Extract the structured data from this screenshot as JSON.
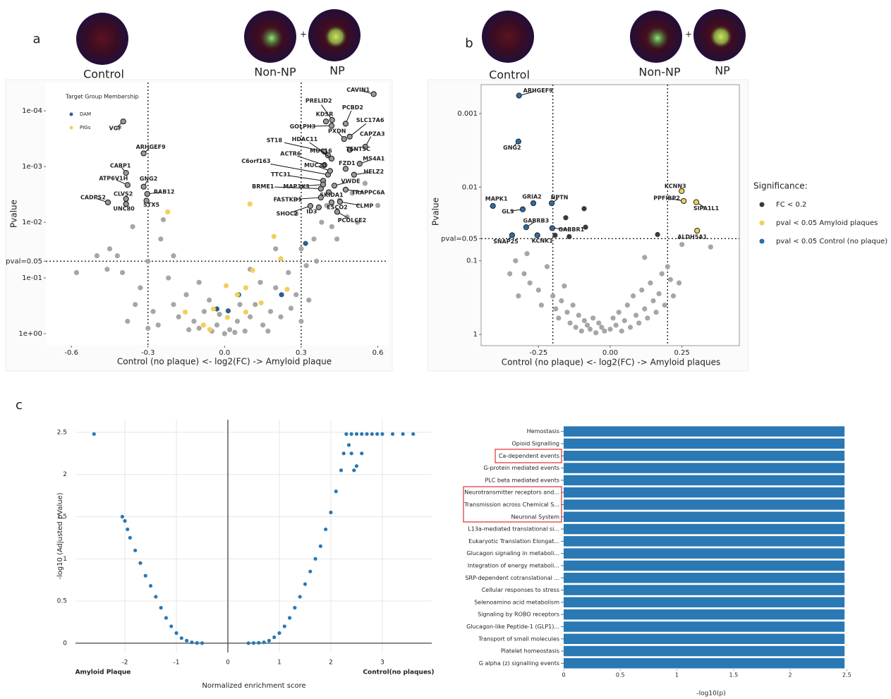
{
  "chart_data": [
    {
      "type": "scatter",
      "panel": "a",
      "image_labels": [
        "Control",
        "Non-NP",
        "NP"
      ],
      "plus": "+",
      "xlabel": "Control (no plaque) <- log2(FC) -> Amyloid plaque",
      "ylabel": "Pvalue",
      "ylog": true,
      "xlim": [
        -0.7,
        0.64
      ],
      "ylim": [
        1.64,
        3.1e-05
      ],
      "xticks": [
        -0.6,
        -0.3,
        {
          "value": 0,
          "label": "0.0"
        },
        0.3,
        0.6
      ],
      "yticks": [
        {
          "value": 0.0001,
          "label": "1e-04"
        },
        {
          "value": 0.001,
          "label": "1e-03"
        },
        {
          "value": 0.01,
          "label": "1e-02"
        },
        {
          "value": 0.05,
          "label": "pval=0.05"
        },
        {
          "value": 0.1,
          "label": "1e-01"
        },
        {
          "value": 1,
          "label": "1e+00"
        }
      ],
      "vlines": [
        -0.3,
        0.3
      ],
      "hlines": [
        0.05
      ],
      "legend_title": "Target Group Membership",
      "series": [
        {
          "color": "#a6a6a6",
          "x": [
            -0.35,
            -0.3,
            -0.25,
            -0.22,
            -0.2,
            -0.18,
            -0.15,
            -0.12,
            -0.1,
            -0.08,
            -0.05,
            -0.03,
            0,
            0.02,
            0.05,
            0.08,
            0.1,
            0.12,
            0.15,
            0.18,
            0.2,
            0.22,
            0.25,
            0.28,
            0.3,
            0.32,
            0.35,
            0.38,
            0.4,
            0.42,
            0.45,
            0.48,
            0.5,
            0.55,
            -0.4,
            -0.42,
            -0.38,
            -0.45,
            -0.33,
            -0.28,
            -0.26,
            -0.24,
            -0.36,
            -0.06,
            0.06,
            0.14,
            0.26,
            0.33,
            -0.5,
            -0.46,
            -0.02,
            0.04,
            -0.14,
            0.17,
            0.1,
            -0.1,
            0.28,
            0.36,
            0.44,
            0.52,
            -0.2,
            0.2,
            -0.3,
            0.3,
            -0.58,
            0.6
          ],
          "values": [
            0.3,
            0.05,
            0.02,
            0.1,
            0.3,
            0.5,
            0.2,
            0.6,
            0.8,
            0.4,
            0.9,
            0.7,
            1,
            0.85,
            0.6,
            0.9,
            0.5,
            0.3,
            0.7,
            0.4,
            0.15,
            0.5,
            0.08,
            0.2,
            0.03,
            0.06,
            0.02,
            0.01,
            0.005,
            0.012,
            0.004,
            0.008,
            0.003,
            0.002,
            0.08,
            0.04,
            0.6,
            0.03,
            0.15,
            0.4,
            0.7,
            0.009,
            0.012,
            0.25,
            0.3,
            0.12,
            0.35,
            0.25,
            0.04,
            0.07,
            0.45,
            0.95,
            0.85,
            0.9,
            0.07,
            0.12,
            0.007,
            0.05,
            0.02,
            0.01,
            0.04,
            0.03,
            0.8,
            0.6,
            0.08,
            0.005
          ]
        },
        {
          "name": "DAM",
          "color": "#2e5f8a",
          "x": [
            0.317,
            0.055,
            0.014,
            -0.03,
            0.223
          ],
          "values": [
            0.024,
            0.2,
            0.39,
            0.36,
            0.2
          ]
        },
        {
          "name": "PIGs",
          "color": "#f2cf5b",
          "x": [
            -0.223,
            0.099,
            0.193,
            0.22,
            0.11,
            0.006,
            0.083,
            -0.154,
            -0.044,
            -0.083,
            -0.058,
            0.011,
            0.083,
            0.143,
            0.245,
            0.05
          ],
          "values": [
            0.0065,
            0.0047,
            0.018,
            0.045,
            0.073,
            0.138,
            0.15,
            0.41,
            0.36,
            0.7,
            0.84,
            0.51,
            0.41,
            0.28,
            0.16,
            0.2
          ]
        },
        {
          "color": "#9a9a9a",
          "outline": "#111",
          "point_labels": [
            "CAVIN1",
            "VGF",
            "ARHGEF9",
            "CABP1",
            "ATP6V1H",
            "GNG2",
            "RAB12",
            "CLVS2",
            "STX5",
            "CADPS2",
            "UNC80",
            "PRELID2",
            "PCBD2",
            "KDSR",
            "SLC17A6",
            "GOLPH3",
            "PXDN",
            "CAPZA3",
            "ST18",
            "HDAC11",
            "TENT5C",
            "MUC16",
            "ACTR6",
            "MS4A1",
            "C6orf163",
            "MUC20",
            "FZD1",
            "HELZ2",
            "TTC31",
            "VWDE",
            "BRME1",
            "MAP3K3",
            "TRAPPC6A",
            "SKIDA1",
            "FASTKD1",
            "CLMP",
            "ESCO2",
            "SHOC2",
            "ID3",
            "PCOLCE2"
          ],
          "x": [
            0.584,
            -0.397,
            -0.317,
            -0.386,
            -0.38,
            -0.317,
            -0.303,
            -0.386,
            -0.306,
            -0.457,
            -0.386,
            0.421,
            0.474,
            0.397,
            0.49,
            0.419,
            0.468,
            0.551,
            0.391,
            0.405,
            0.49,
            0.419,
            0.391,
            0.529,
            0.405,
            0.413,
            0.474,
            0.507,
            0.386,
            0.43,
            0.377,
            0.386,
            0.474,
            0.408,
            0.377,
            0.452,
            0.419,
            0.336,
            0.369,
            0.441
          ],
          "values": [
            5e-05,
            0.000155,
            0.00058,
            0.0013,
            0.00214,
            0.0023,
            0.0031,
            0.0038,
            0.0041,
            0.0044,
            0.0047,
            0.000146,
            0.00017,
            0.000155,
            0.00029,
            0.000185,
            0.00032,
            0.00044,
            0.00054,
            0.00063,
            0.0005,
            0.00072,
            0.00094,
            0.00089,
            0.0014,
            0.0012,
            0.0011,
            0.0014,
            0.0018,
            0.0022,
            0.0025,
            0.0021,
            0.0026,
            0.0029,
            0.0036,
            0.0043,
            0.0044,
            0.0051,
            0.0054,
            0.0065
          ]
        }
      ]
    },
    {
      "type": "scatter",
      "panel": "b",
      "image_labels": [
        "Control",
        "Non-NP",
        "NP"
      ],
      "plus": "+",
      "xlabel": "Control (no plaque) <- log2(FC) -> Amyloid plaques",
      "ylabel": "Pvalue",
      "ylog": true,
      "xlim": [
        -0.45,
        0.45
      ],
      "ylim": [
        1.42,
        0.000405
      ],
      "xticks": [
        -0.25,
        {
          "value": 0,
          "label": "0.00"
        },
        0.25
      ],
      "yticks": [
        0.001,
        0.01,
        {
          "value": 0.05,
          "label": "pval=0.05"
        },
        0.1,
        1
      ],
      "vlines": [
        -0.2,
        0.2
      ],
      "hlines": [
        0.05
      ],
      "frame": true,
      "legend_title": "Significance:",
      "series": [
        {
          "color": "#a6a6a6",
          "x": [
            -0.3,
            -0.28,
            -0.25,
            -0.22,
            -0.2,
            -0.19,
            -0.18,
            -0.17,
            -0.15,
            -0.14,
            -0.13,
            -0.12,
            -0.11,
            -0.1,
            -0.09,
            -0.08,
            -0.07,
            -0.06,
            -0.05,
            -0.04,
            -0.03,
            -0.02,
            0,
            0.01,
            0.02,
            0.03,
            0.04,
            0.05,
            0.06,
            0.07,
            0.08,
            0.09,
            0.1,
            0.11,
            0.12,
            0.13,
            0.14,
            0.15,
            0.16,
            0.17,
            0.18,
            0.19,
            0.2,
            0.22,
            0.24,
            0.25,
            0.35,
            -0.32,
            -0.33,
            -0.35,
            -0.29,
            -0.24,
            0.12,
            0.21,
            -0.16
          ],
          "values": [
            0.15,
            0.2,
            0.25,
            0.12,
            0.3,
            0.45,
            0.6,
            0.35,
            0.5,
            0.7,
            0.4,
            0.8,
            0.55,
            0.9,
            0.65,
            0.75,
            0.85,
            0.6,
            0.95,
            0.7,
            0.8,
            0.9,
            0.85,
            0.6,
            0.75,
            0.5,
            0.9,
            0.65,
            0.4,
            0.8,
            0.3,
            0.55,
            0.7,
            0.25,
            0.45,
            0.6,
            0.2,
            0.35,
            0.5,
            0.28,
            0.15,
            0.4,
            0.12,
            0.3,
            0.2,
            0.06,
            0.065,
            0.3,
            0.1,
            0.15,
            0.08,
            0.4,
            0.09,
            0.18,
            0.22
          ]
        },
        {
          "name": "FC < 0.2",
          "color": "#3a3a3a",
          "x": [
            -0.091,
            -0.155,
            -0.086,
            -0.192,
            -0.143,
            0.165
          ],
          "values": [
            0.0196,
            0.026,
            0.035,
            0.045,
            0.047,
            0.044
          ]
        },
        {
          "name": "pval < 0.05 Amyloid plaques",
          "color": "#f2cf5b",
          "outline": "#222",
          "point_labels": [
            "KCNN3",
            "PPFIBP2",
            "SIPA1L1",
            "ALDH5A1"
          ],
          "x": [
            0.249,
            0.256,
            0.3,
            0.303
          ],
          "values": [
            0.0113,
            0.0154,
            0.016,
            0.039
          ]
        },
        {
          "name": "pval < 0.05 Control (no plaque)",
          "color": "#2e6da4",
          "outline": "#222",
          "point_labels": [
            "ARHGEF9",
            "GNG2",
            "MAPK1",
            "GLS",
            "GRIA2",
            "NPTN",
            "GABRB3",
            "GABBR1",
            "SNAP25",
            "KCNK1"
          ],
          "x": [
            -0.318,
            -0.32,
            -0.409,
            -0.305,
            -0.268,
            -0.204,
            -0.293,
            -0.202,
            -0.342,
            -0.254
          ],
          "values": [
            0.00057,
            0.0024,
            0.018,
            0.02,
            0.0165,
            0.0165,
            0.035,
            0.036,
            0.045,
            0.045
          ]
        }
      ]
    },
    {
      "type": "scatter",
      "panel": "c",
      "xlabel": "Normalized enrichment score",
      "ylabel": "-log10 (Adjusted pValue)",
      "end_labels": [
        "Amyloid Plaque",
        "Control(no plaques)"
      ],
      "xlim": [
        -2.96,
        3.96
      ],
      "ylim": [
        -0.11,
        2.65
      ],
      "xticks": [
        -2,
        -1,
        0,
        1,
        2,
        3
      ],
      "yticks": [
        0,
        0.5,
        1,
        1.5,
        2,
        2.5
      ],
      "grid": true,
      "zero_lines": true,
      "series": [
        {
          "color": "#2a78b4",
          "x": [
            -2.6,
            -2.05,
            -2.0,
            -1.95,
            -1.9,
            -1.8,
            -1.7,
            -1.6,
            -1.5,
            -1.4,
            -1.3,
            -1.2,
            -1.1,
            -1.0,
            -0.9,
            -0.8,
            -0.7,
            -0.6,
            -0.5,
            0.4,
            0.5,
            0.6,
            0.7,
            0.8,
            0.9,
            1.0,
            1.1,
            1.2,
            1.3,
            1.4,
            1.5,
            1.6,
            1.7,
            1.8,
            1.9,
            2.0,
            2.1,
            2.2,
            2.25,
            2.35,
            2.4,
            2.45,
            2.6,
            2.5,
            2.3,
            2.4,
            2.5,
            2.6,
            2.7,
            2.8,
            2.9,
            3.0,
            3.2,
            3.4,
            3.6
          ],
          "values": [
            2.48,
            1.5,
            1.45,
            1.35,
            1.25,
            1.1,
            0.95,
            0.8,
            0.68,
            0.55,
            0.42,
            0.3,
            0.2,
            0.12,
            0.06,
            0.03,
            0.01,
            0.003,
            0.001,
            0,
            0.002,
            0.005,
            0.01,
            0.03,
            0.07,
            0.12,
            0.2,
            0.3,
            0.42,
            0.55,
            0.7,
            0.85,
            1.0,
            1.15,
            1.35,
            1.55,
            1.8,
            2.05,
            2.25,
            2.35,
            2.25,
            2.05,
            2.25,
            2.1,
            2.48,
            2.48,
            2.48,
            2.48,
            2.48,
            2.48,
            2.48,
            2.48,
            2.48,
            2.48,
            2.48
          ]
        }
      ]
    },
    {
      "type": "barh",
      "xlabel": "-log10(p)",
      "color": "#2a78b4",
      "xlim": [
        0,
        2.56
      ],
      "xticks": [
        0,
        0.5,
        1,
        1.5,
        2,
        2.5
      ],
      "categories": [
        "Hemostasis",
        "Opioid Signalling",
        "Ca-dependent events",
        "G-protein mediated events",
        "PLC beta mediated events",
        "Neurotransmitter receptors and...",
        "Transmission across Chemical S...",
        "Neuronal System",
        "L13a-mediated translational si...",
        "Eukaryotic Translation Elongat...",
        "Glucagon signaling in metaboli...",
        "Integration of energy metaboli...",
        "SRP-dependent cotranslational ...",
        "Cellular responses to stress",
        "Selenoamino acid metabolism",
        "Signaling by ROBO receptors",
        "Glucagon-like Peptide-1 (GLP1)...",
        "Transport of small molecules",
        "Platelet homeostasis",
        "G alpha (z) signalling events"
      ],
      "values": [
        2.48,
        2.48,
        2.48,
        2.48,
        2.48,
        2.48,
        2.48,
        2.48,
        2.48,
        2.48,
        2.48,
        2.48,
        2.48,
        2.48,
        2.48,
        2.48,
        2.48,
        2.48,
        2.48,
        2.48
      ]
    }
  ]
}
